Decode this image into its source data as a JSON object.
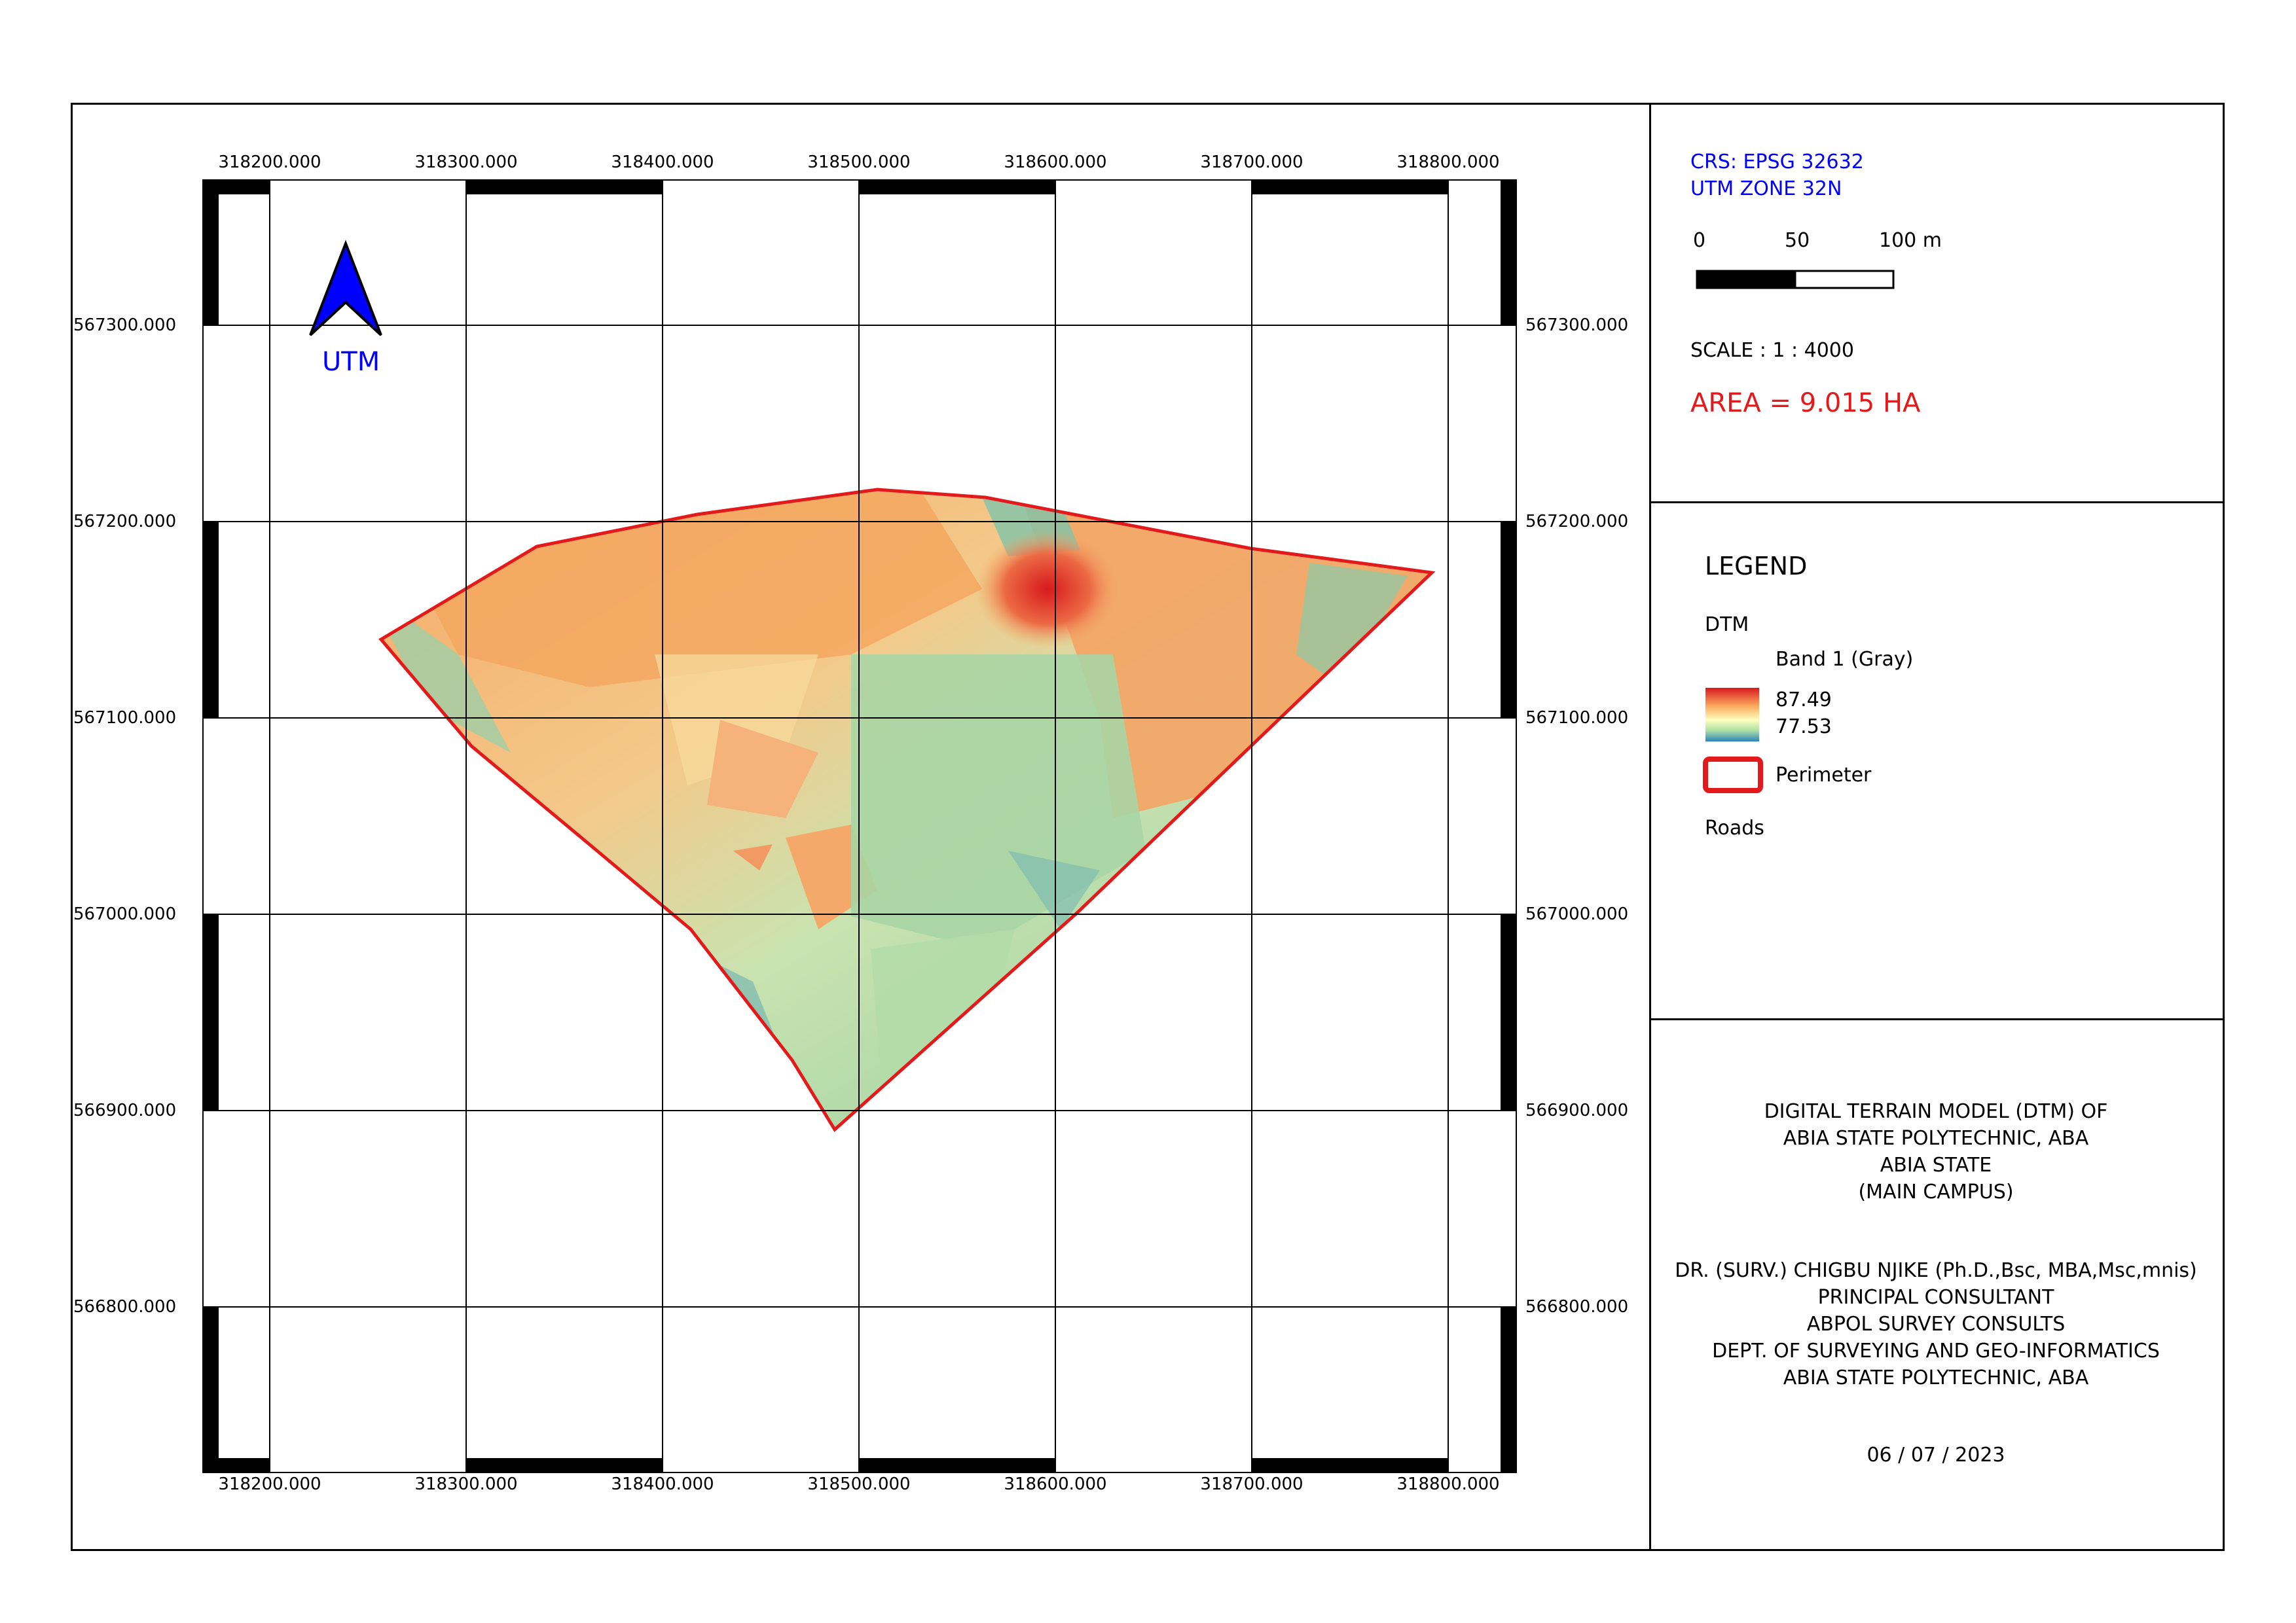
{
  "map": {
    "grid": {
      "x_labels": [
        "318200.000",
        "318300.000",
        "318400.000",
        "318500.000",
        "318600.000",
        "318700.000",
        "318800.000"
      ],
      "y_labels": [
        "567300.000",
        "567200.000",
        "567100.000",
        "567000.000",
        "566900.000",
        "566800.000"
      ]
    },
    "north_arrow": {
      "label": "UTM",
      "color": "#0000ff",
      "icon": "north-arrow-icon"
    },
    "perimeter": {
      "color": "#e31a1c"
    }
  },
  "info": {
    "crs_line1": "CRS: EPSG 32632",
    "crs_line2": "UTM ZONE 32N",
    "scalebar": {
      "label_0": "0",
      "label_50": "50",
      "label_100": "100 m"
    },
    "scale_text": "SCALE : 1 : 4000",
    "area_text": "AREA = 9.015 HA",
    "text_color_blue": "#0000ff",
    "text_color_red": "#e31a1c"
  },
  "legend": {
    "title": "LEGEND",
    "layer_dtm": "DTM",
    "band": "Band 1 (Gray)",
    "max_value": "87.49",
    "min_value": "77.53",
    "perimeter_label": "Perimeter",
    "roads_label": "Roads"
  },
  "title_block": {
    "line1": "DIGITAL TERRAIN MODEL (DTM) OF",
    "line2": "ABIA STATE POLYTECHNIC, ABA",
    "line3": "ABIA STATE",
    "line4": "(MAIN CAMPUS)",
    "line5": "DR. (SURV.) CHIGBU NJIKE (Ph.D.,Bsc, MBA,Msc,mnis)",
    "line6": "PRINCIPAL CONSULTANT",
    "line7": "ABPOL SURVEY CONSULTS",
    "line8": "DEPT. OF SURVEYING AND GEO-INFORMATICS",
    "line9": "ABIA STATE POLYTECHNIC, ABA",
    "date": "06 / 07 / 2023"
  }
}
